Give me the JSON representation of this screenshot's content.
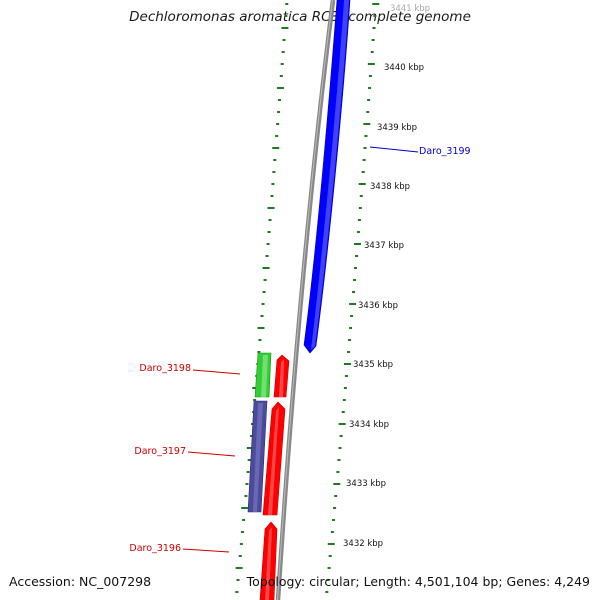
{
  "title": "Dechloromonas aromatica RCB, complete genome",
  "footer": {
    "accession": "Accession: NC_007298",
    "topology": "Topology: circular; Length: 4,501,104 bp; Genes: 4,249"
  },
  "colors": {
    "forward_gene": "#0000ff",
    "reverse_gene": "#ff0000",
    "reverse_gene_alt": "#f20f0f",
    "green_feature": "#33cc33",
    "purple_feature": "#4b4b9b",
    "backbone": "#888888",
    "tick_marks": "#1f7a1f",
    "forward_label": "#0000cc",
    "reverse_label": "#cc0000"
  },
  "scale_labels": [
    {
      "text": "3441 kbp",
      "faded": true
    },
    {
      "text": "3440 kbp"
    },
    {
      "text": "3439 kbp"
    },
    {
      "text": "3438 kbp"
    },
    {
      "text": "3437 kbp"
    },
    {
      "text": "3436 kbp"
    },
    {
      "text": "3435 kbp"
    },
    {
      "text": "3434 kbp"
    },
    {
      "text": "3433 kbp"
    },
    {
      "text": "3432 kbp"
    }
  ],
  "genes": [
    {
      "label": "Daro_3199",
      "strand": "forward"
    },
    {
      "label": "Daro_3198",
      "strand": "reverse"
    },
    {
      "label": "Daro_3197",
      "strand": "reverse"
    },
    {
      "label": "Daro_3196",
      "strand": "reverse"
    }
  ]
}
